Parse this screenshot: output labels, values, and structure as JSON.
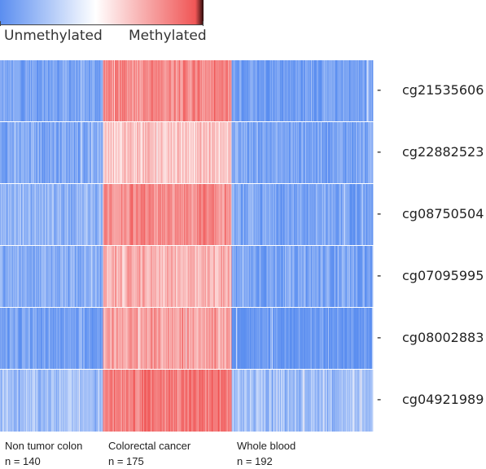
{
  "chart_data": {
    "type": "heatmap",
    "legend": {
      "low_label": "Unmethylated",
      "high_label": "Methylated",
      "low_color": "#5b8ef0",
      "mid_color": "#ffffff",
      "high_color": "#f05656",
      "end_color": "#2a0a0a"
    },
    "rows": [
      "cg21535606",
      "cg22882523",
      "cg08750504",
      "cg07095995",
      "cg08002883",
      "cg04921989"
    ],
    "groups": [
      {
        "name": "Non tumor colon",
        "n_label": "n = 140",
        "count": 140
      },
      {
        "name": "Colorectal cancer",
        "n_label": "n = 175",
        "count": 175
      },
      {
        "name": "Whole blood",
        "n_label": "n = 192",
        "count": 192
      }
    ],
    "mean_scaled_values": [
      [
        -0.8,
        0.7,
        -0.85
      ],
      [
        -0.75,
        0.35,
        -0.8
      ],
      [
        -0.65,
        0.65,
        -0.8
      ],
      [
        -0.75,
        0.45,
        -0.8
      ],
      [
        -0.85,
        0.55,
        -0.95
      ],
      [
        -0.55,
        0.8,
        -0.55
      ]
    ],
    "color_scale_range": [
      -1,
      1
    ]
  }
}
